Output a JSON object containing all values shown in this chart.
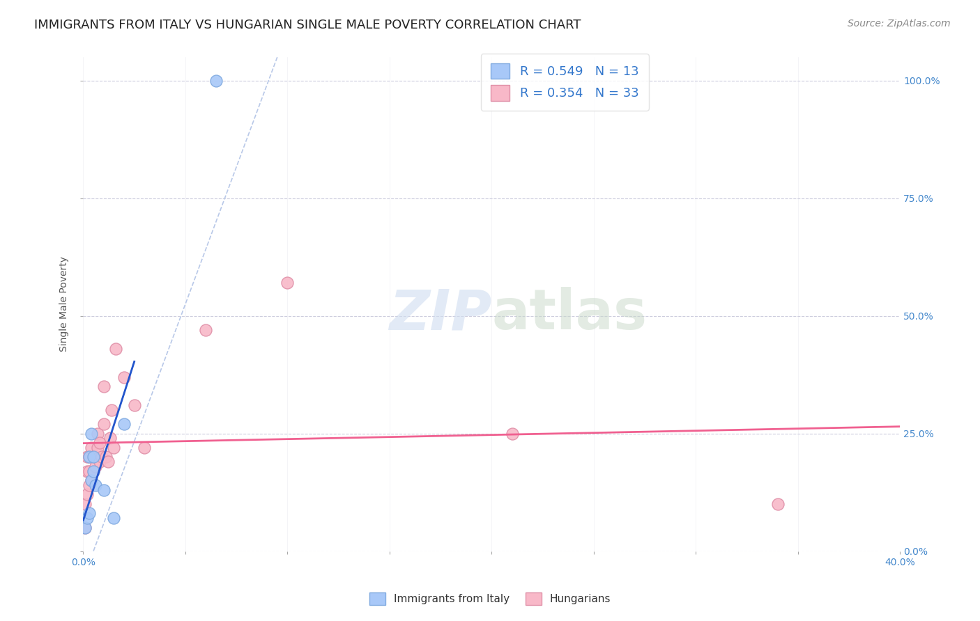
{
  "title": "IMMIGRANTS FROM ITALY VS HUNGARIAN SINGLE MALE POVERTY CORRELATION CHART",
  "source": "Source: ZipAtlas.com",
  "ylabel": "Single Male Poverty",
  "yaxis_labels": [
    "0.0%",
    "25.0%",
    "50.0%",
    "75.0%",
    "100.0%"
  ],
  "xaxis_labels": [
    "0.0%",
    "",
    "",
    "",
    "",
    "",
    "",
    "",
    "40.0%"
  ],
  "xaxis_ticks": [
    0.0,
    0.05,
    0.1,
    0.15,
    0.2,
    0.25,
    0.3,
    0.35,
    0.4
  ],
  "yaxis_ticks": [
    0.0,
    0.25,
    0.5,
    0.75,
    1.0
  ],
  "legend_italy": "R = 0.549   N = 13",
  "legend_hungarian": "R = 0.354   N = 33",
  "italy_color": "#a8c8f8",
  "italy_edge_color": "#80aae0",
  "hungarian_color": "#f8b8c8",
  "hungarian_edge_color": "#e090a8",
  "italy_line_color": "#2255cc",
  "hungarian_line_color": "#f06090",
  "diagonal_color": "#b8c8e8",
  "background_color": "#ffffff",
  "grid_color": "#ccccdd",
  "legend_R_color": "#3377cc",
  "watermark_color": "#d0ddf0",
  "tick_color": "#4488cc",
  "italy_x": [
    0.001,
    0.002,
    0.003,
    0.003,
    0.004,
    0.004,
    0.005,
    0.005,
    0.006,
    0.01,
    0.015,
    0.02,
    0.065
  ],
  "italy_y": [
    0.05,
    0.07,
    0.08,
    0.2,
    0.15,
    0.25,
    0.17,
    0.2,
    0.14,
    0.13,
    0.07,
    0.27,
    1.0
  ],
  "hungarian_x": [
    0.001,
    0.001,
    0.002,
    0.002,
    0.002,
    0.003,
    0.003,
    0.003,
    0.004,
    0.004,
    0.005,
    0.005,
    0.006,
    0.007,
    0.007,
    0.008,
    0.008,
    0.009,
    0.01,
    0.01,
    0.011,
    0.012,
    0.013,
    0.014,
    0.015,
    0.016,
    0.02,
    0.025,
    0.03,
    0.06,
    0.1,
    0.21,
    0.34
  ],
  "hungarian_y": [
    0.05,
    0.1,
    0.12,
    0.17,
    0.2,
    0.14,
    0.17,
    0.2,
    0.15,
    0.22,
    0.17,
    0.2,
    0.18,
    0.22,
    0.25,
    0.19,
    0.23,
    0.2,
    0.27,
    0.35,
    0.2,
    0.19,
    0.24,
    0.3,
    0.22,
    0.43,
    0.37,
    0.31,
    0.22,
    0.47,
    0.57,
    0.25,
    0.1
  ],
  "marker_size": 150,
  "xlim": [
    0.0,
    0.4
  ],
  "ylim": [
    0.0,
    1.05
  ],
  "title_fontsize": 13,
  "source_fontsize": 10,
  "axis_label_fontsize": 10,
  "tick_label_fontsize": 10,
  "legend_fontsize": 13
}
